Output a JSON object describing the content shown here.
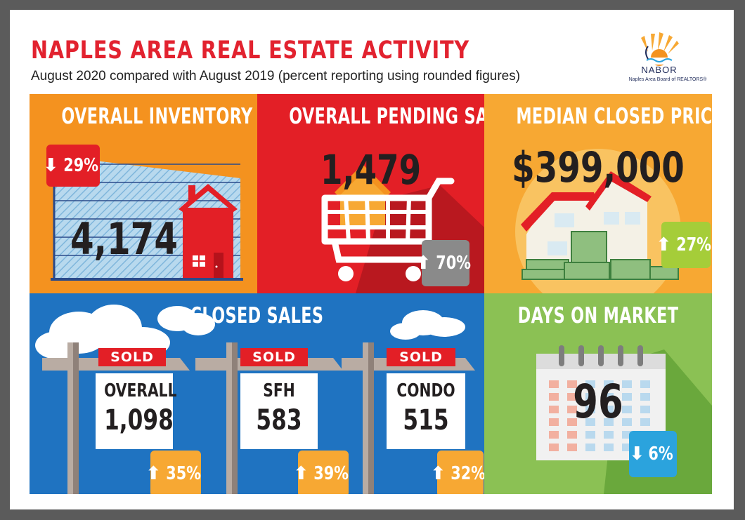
{
  "header": {
    "title": "NAPLES AREA REAL ESTATE ACTIVITY",
    "subtitle": "August 2020 compared with August 2019 (percent reporting using rounded figures)"
  },
  "logo": {
    "name": "NABOR",
    "subtitle": "Naples Area Board of REALTORS®"
  },
  "panels": {
    "inventory": {
      "title": "OVERALL INVENTORY",
      "value": "4,174",
      "change": "29%",
      "direction": "down",
      "color": "#f4921f"
    },
    "pending": {
      "title": "OVERALL PENDING SALES",
      "value": "1,479",
      "change": "70%",
      "direction": "up",
      "color": "#e31f26"
    },
    "median": {
      "title": "MEDIAN CLOSED PRICE",
      "value": "$399,000",
      "change": "27%",
      "direction": "up",
      "color": "#f7a833"
    },
    "closed": {
      "title": "CLOSED SALES",
      "color": "#1f73c1",
      "signs": [
        {
          "sold": "SOLD",
          "label": "OVERALL",
          "value": "1,098",
          "change": "35%",
          "direction": "up"
        },
        {
          "sold": "SOLD",
          "label": "SFH",
          "value": "583",
          "change": "39%",
          "direction": "up"
        },
        {
          "sold": "SOLD",
          "label": "CONDO",
          "value": "515",
          "change": "32%",
          "direction": "up"
        }
      ]
    },
    "dom": {
      "title": "DAYS ON MARKET",
      "value": "96",
      "change": "6%",
      "direction": "down",
      "color": "#8bc154"
    }
  },
  "icons": {
    "down": "arrow-down-icon",
    "up": "arrow-up-icon"
  },
  "colors": {
    "title_red": "#e2222f",
    "badge_red": "#e31f26",
    "badge_gray": "#8a8a8a",
    "badge_green": "#a5cd39",
    "badge_orange": "#f7a833",
    "badge_blue": "#2ba3dd"
  }
}
